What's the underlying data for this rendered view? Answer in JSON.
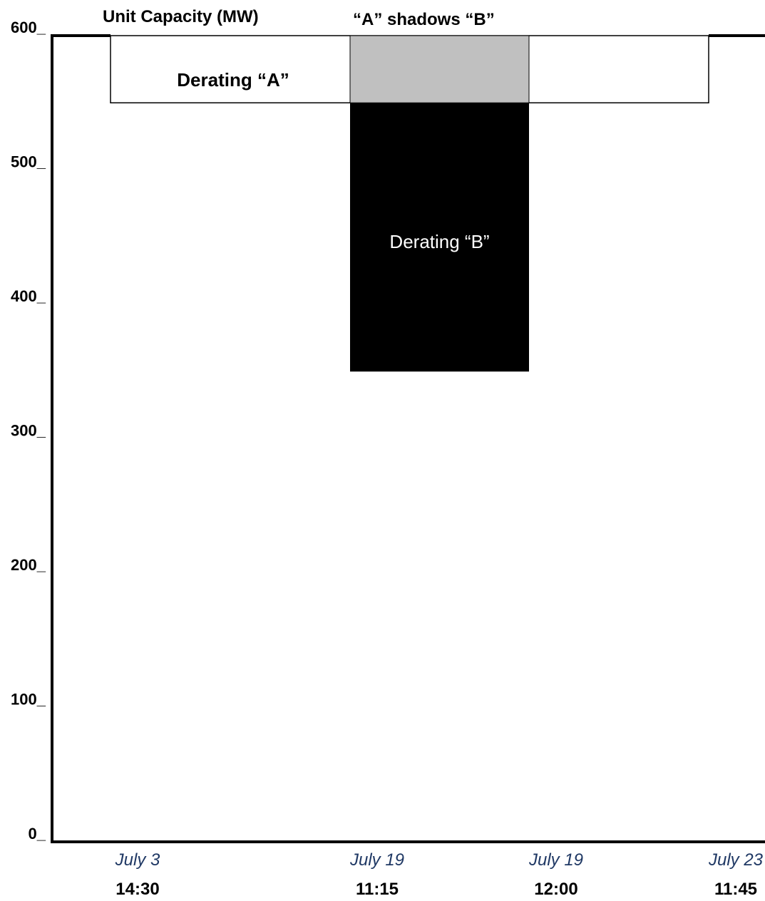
{
  "chart_data": {
    "type": "bar",
    "title": "",
    "ylabel": "Unit Capacity (MW)",
    "shadow_label": "“A” shadows “B”",
    "ylim": [
      0,
      600
    ],
    "y_ticks": [
      "0_",
      "100_",
      "200_",
      "300_",
      "400_",
      "500_",
      "600_"
    ],
    "y_tick_values": [
      0,
      100,
      200,
      300,
      400,
      500,
      600
    ],
    "unit_capacity_mw": 600,
    "x_points": [
      {
        "date": "July 3",
        "time": "14:30"
      },
      {
        "date": "July 19",
        "time": "11:15"
      },
      {
        "date": "July 19",
        "time": "12:00"
      },
      {
        "date": "July 23",
        "time": "11:45"
      }
    ],
    "derating_a": {
      "label": "Derating “A”",
      "start_index": 0,
      "end_index": 3,
      "top_mw": 600,
      "bottom_mw": 550
    },
    "derating_b": {
      "label": "Derating “B”",
      "start_index": 1,
      "end_index": 2,
      "top_mw": 550,
      "bottom_mw": 350
    },
    "shadow_region": {
      "start_index": 1,
      "end_index": 2,
      "top_mw": 600,
      "bottom_mw": 550
    },
    "colors": {
      "shadow": "#c0c0c0",
      "derating_b": "#000000",
      "axis": "#000000",
      "date_text": "#1f3864"
    },
    "grid": false,
    "legend": "none"
  }
}
